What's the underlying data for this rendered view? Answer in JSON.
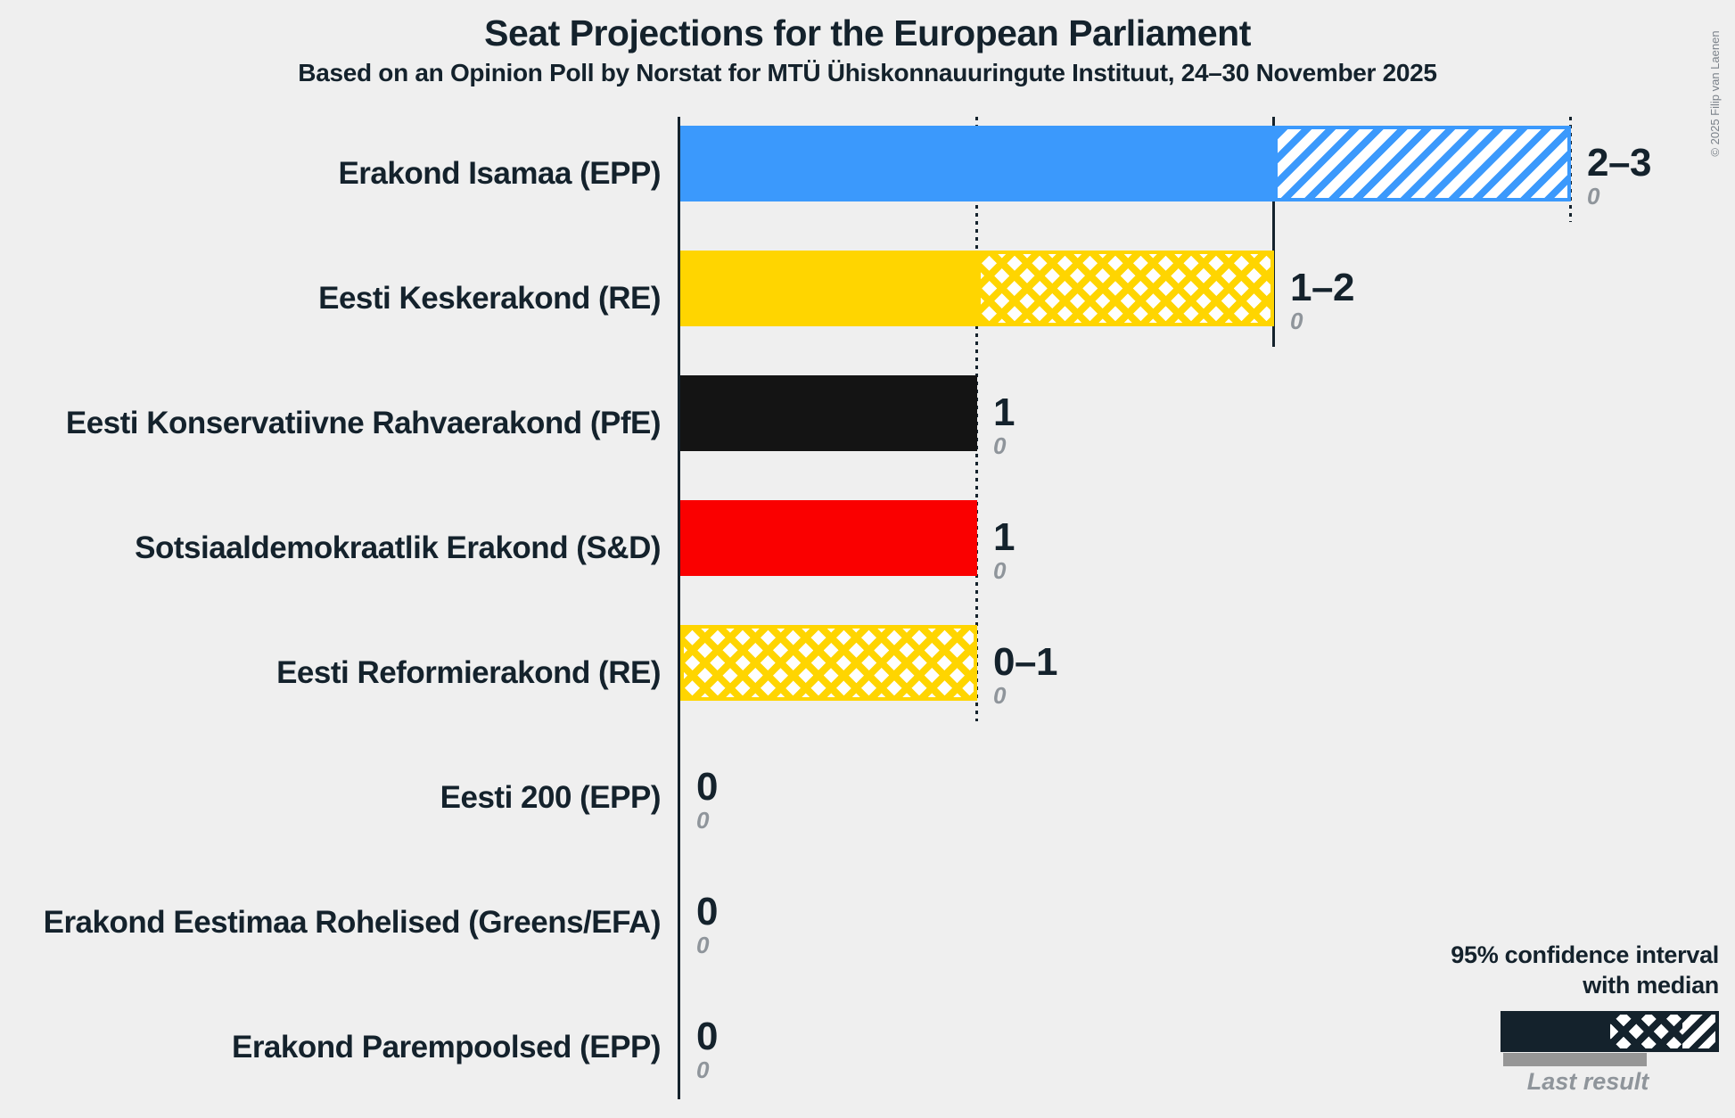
{
  "title": "Seat Projections for the European Parliament",
  "subtitle": "Based on an Opinion Poll by Norstat for MTÜ Ühiskonnauuringute Instituut, 24–30 November 2025",
  "copyright": "© 2025 Filip van Laenen",
  "colors": {
    "background": "#EFEFEF",
    "text": "#14222C",
    "muted_gray": "#8F959B",
    "last_result_bar": "#969696",
    "blue": "#3B99FC",
    "yellow": "#FFD500",
    "black": "#141414",
    "red": "#FA0000"
  },
  "legend": {
    "ci_label_line1": "95% confidence interval",
    "ci_label_line2": "with median",
    "last_result_label": "Last result"
  },
  "chart_data": {
    "type": "bar",
    "orientation": "horizontal",
    "unit": "seats",
    "x_axis": {
      "min": 0,
      "max": 3,
      "gridlines_at": [
        1,
        2,
        3
      ]
    },
    "gridlines": [
      {
        "value": 1,
        "style": "dotted",
        "extends_through_party_index": 4
      },
      {
        "value": 2,
        "style": "solid",
        "extends_through_party_index": 1
      },
      {
        "value": 3,
        "style": "dotted",
        "extends_through_party_index": 0
      }
    ],
    "parties": [
      {
        "label": "Erakond Isamaa (EPP)",
        "color": "#3B99FC",
        "ci_label": "2–3",
        "ci_low": 2,
        "ci_high": 3,
        "last_result": 0,
        "segments": {
          "solid_end": 2,
          "crosshatch_end": 2,
          "hatch_end": 3
        }
      },
      {
        "label": "Eesti Keskerakond (RE)",
        "color": "#FFD500",
        "ci_label": "1–2",
        "ci_low": 1,
        "ci_high": 2,
        "last_result": 0,
        "segments": {
          "solid_end": 1,
          "crosshatch_end": 2,
          "hatch_end": 2
        }
      },
      {
        "label": "Eesti Konservatiivne Rahvaerakond (PfE)",
        "color": "#141414",
        "ci_label": "1",
        "ci_low": 1,
        "ci_high": 1,
        "last_result": 0,
        "segments": {
          "solid_end": 1,
          "crosshatch_end": 1,
          "hatch_end": 1
        }
      },
      {
        "label": "Sotsiaaldemokraatlik Erakond (S&D)",
        "color": "#FA0000",
        "ci_label": "1",
        "ci_low": 1,
        "ci_high": 1,
        "last_result": 0,
        "segments": {
          "solid_end": 1,
          "crosshatch_end": 1,
          "hatch_end": 1
        }
      },
      {
        "label": "Eesti Reformierakond (RE)",
        "color": "#FFD500",
        "ci_label": "0–1",
        "ci_low": 0,
        "ci_high": 1,
        "last_result": 0,
        "segments": {
          "solid_end": 0,
          "crosshatch_end": 1,
          "hatch_end": 1
        }
      },
      {
        "label": "Eesti 200 (EPP)",
        "color": "#3B99FC",
        "ci_label": "0",
        "ci_low": 0,
        "ci_high": 0,
        "last_result": 0,
        "segments": {
          "solid_end": 0,
          "crosshatch_end": 0,
          "hatch_end": 0
        }
      },
      {
        "label": "Erakond Eestimaa Rohelised (Greens/EFA)",
        "color": "#FFD500",
        "ci_label": "0",
        "ci_low": 0,
        "ci_high": 0,
        "last_result": 0,
        "segments": {
          "solid_end": 0,
          "crosshatch_end": 0,
          "hatch_end": 0
        }
      },
      {
        "label": "Erakond Parempoolsed (EPP)",
        "color": "#3B99FC",
        "ci_label": "0",
        "ci_low": 0,
        "ci_high": 0,
        "last_result": 0,
        "segments": {
          "solid_end": 0,
          "crosshatch_end": 0,
          "hatch_end": 0
        }
      }
    ]
  }
}
